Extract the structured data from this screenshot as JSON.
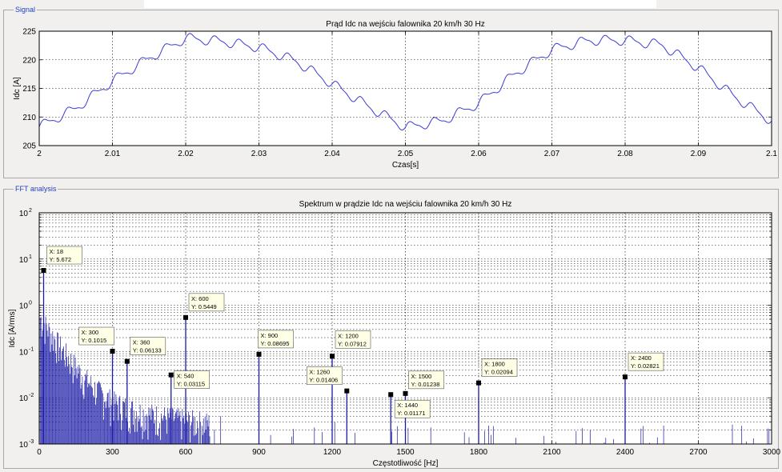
{
  "panels": {
    "signal_label": "Signal",
    "fft_label": "FFT analysis"
  },
  "chart_data": [
    {
      "id": "signal",
      "type": "line",
      "title": "Prąd Idc na wejściu falownika 20 km/h 30 Hz",
      "xlabel": "Czas[s]",
      "ylabel": "Idc [A]",
      "xlim": [
        2.0,
        2.1
      ],
      "ylim": [
        205,
        225
      ],
      "grid": true,
      "xticks": [
        2.0,
        2.01,
        2.02,
        2.03,
        2.04,
        2.05,
        2.06,
        2.07,
        2.08,
        2.09,
        2.1
      ],
      "xtick_labels": [
        "2",
        "2.01",
        "2.02",
        "2.03",
        "2.04",
        "2.05",
        "2.06",
        "2.07",
        "2.08",
        "2.09",
        "2.1"
      ],
      "yticks": [
        205,
        210,
        215,
        220,
        225
      ],
      "ytick_labels": [
        "205",
        "210",
        "215",
        "220",
        "225"
      ],
      "series": [
        {
          "color": "#3b3bd6",
          "x": [
            2.0,
            2.005,
            2.01,
            2.015,
            2.02,
            2.025,
            2.03,
            2.035,
            2.04,
            2.045,
            2.05,
            2.055,
            2.06,
            2.065,
            2.07,
            2.075,
            2.08,
            2.085,
            2.09,
            2.095,
            2.1
          ],
          "y": [
            208.3,
            211.5,
            216.3,
            220.3,
            223.8,
            223.2,
            222.2,
            219.8,
            215.8,
            211.8,
            208.2,
            209.3,
            212.4,
            217.6,
            221.8,
            223.4,
            223.4,
            222.6,
            218.6,
            213.5,
            209.3
          ]
        }
      ]
    },
    {
      "id": "fft",
      "type": "bar",
      "title": "Spektrum w prądzie Idc na wejściu falownika 20 km/h 30 Hz",
      "xlabel": "Częstotliwość [Hz]",
      "ylabel": "Idc [A/rms]",
      "xlim": [
        0,
        3000
      ],
      "ylim": [
        0.001,
        100
      ],
      "yscale": "log",
      "grid": true,
      "xticks": [
        0,
        300,
        600,
        900,
        1200,
        1500,
        1800,
        2100,
        2400,
        2700,
        3000
      ],
      "xtick_labels": [
        "0",
        "300",
        "600",
        "900",
        "1200",
        "1500",
        "1800",
        "2100",
        "2400",
        "2700",
        "3000"
      ],
      "ytick_labels": [
        {
          "base": "10",
          "exp": "-3"
        },
        {
          "base": "10",
          "exp": "-2"
        },
        {
          "base": "10",
          "exp": "-1"
        },
        {
          "base": "10",
          "exp": "0"
        },
        {
          "base": "10",
          "exp": "1"
        },
        {
          "base": "10",
          "exp": "2"
        }
      ],
      "series": [
        {
          "color": "#1a1aa6",
          "x": [
            18,
            300,
            360,
            540,
            600,
            900,
            1200,
            1260,
            1440,
            1500,
            1800,
            2400
          ],
          "y": [
            5.672,
            0.1015,
            0.06133,
            0.03115,
            0.5449,
            0.08695,
            0.07912,
            0.01406,
            0.01171,
            0.01238,
            0.02094,
            0.02821
          ]
        }
      ],
      "datatips": [
        {
          "x": 18,
          "y": 5.672,
          "x_text": "X: 18",
          "y_text": "Y: 5.672"
        },
        {
          "x": 300,
          "y": 0.1015,
          "x_text": "X: 300",
          "y_text": "Y: 0.1015"
        },
        {
          "x": 360,
          "y": 0.06133,
          "x_text": "X: 360",
          "y_text": "Y: 0.06133"
        },
        {
          "x": 540,
          "y": 0.03115,
          "x_text": "X: 540",
          "y_text": "Y: 0.03115"
        },
        {
          "x": 600,
          "y": 0.5449,
          "x_text": "X: 600",
          "y_text": "Y: 0.5449"
        },
        {
          "x": 900,
          "y": 0.08695,
          "x_text": "X: 900",
          "y_text": "Y: 0.08695"
        },
        {
          "x": 1200,
          "y": 0.07912,
          "x_text": "X: 1200",
          "y_text": "Y: 0.07912"
        },
        {
          "x": 1260,
          "y": 0.01406,
          "x_text": "X: 1260",
          "y_text": "Y: 0.01406"
        },
        {
          "x": 1440,
          "y": 0.01171,
          "x_text": "X: 1440",
          "y_text": "Y: 0.01171"
        },
        {
          "x": 1500,
          "y": 0.01238,
          "x_text": "X: 1500",
          "y_text": "Y: 0.01238"
        },
        {
          "x": 1800,
          "y": 0.02094,
          "x_text": "X: 1800",
          "y_text": "Y: 0.02094"
        },
        {
          "x": 2400,
          "y": 0.02821,
          "x_text": "X: 2400",
          "y_text": "Y: 0.02821"
        }
      ]
    }
  ]
}
